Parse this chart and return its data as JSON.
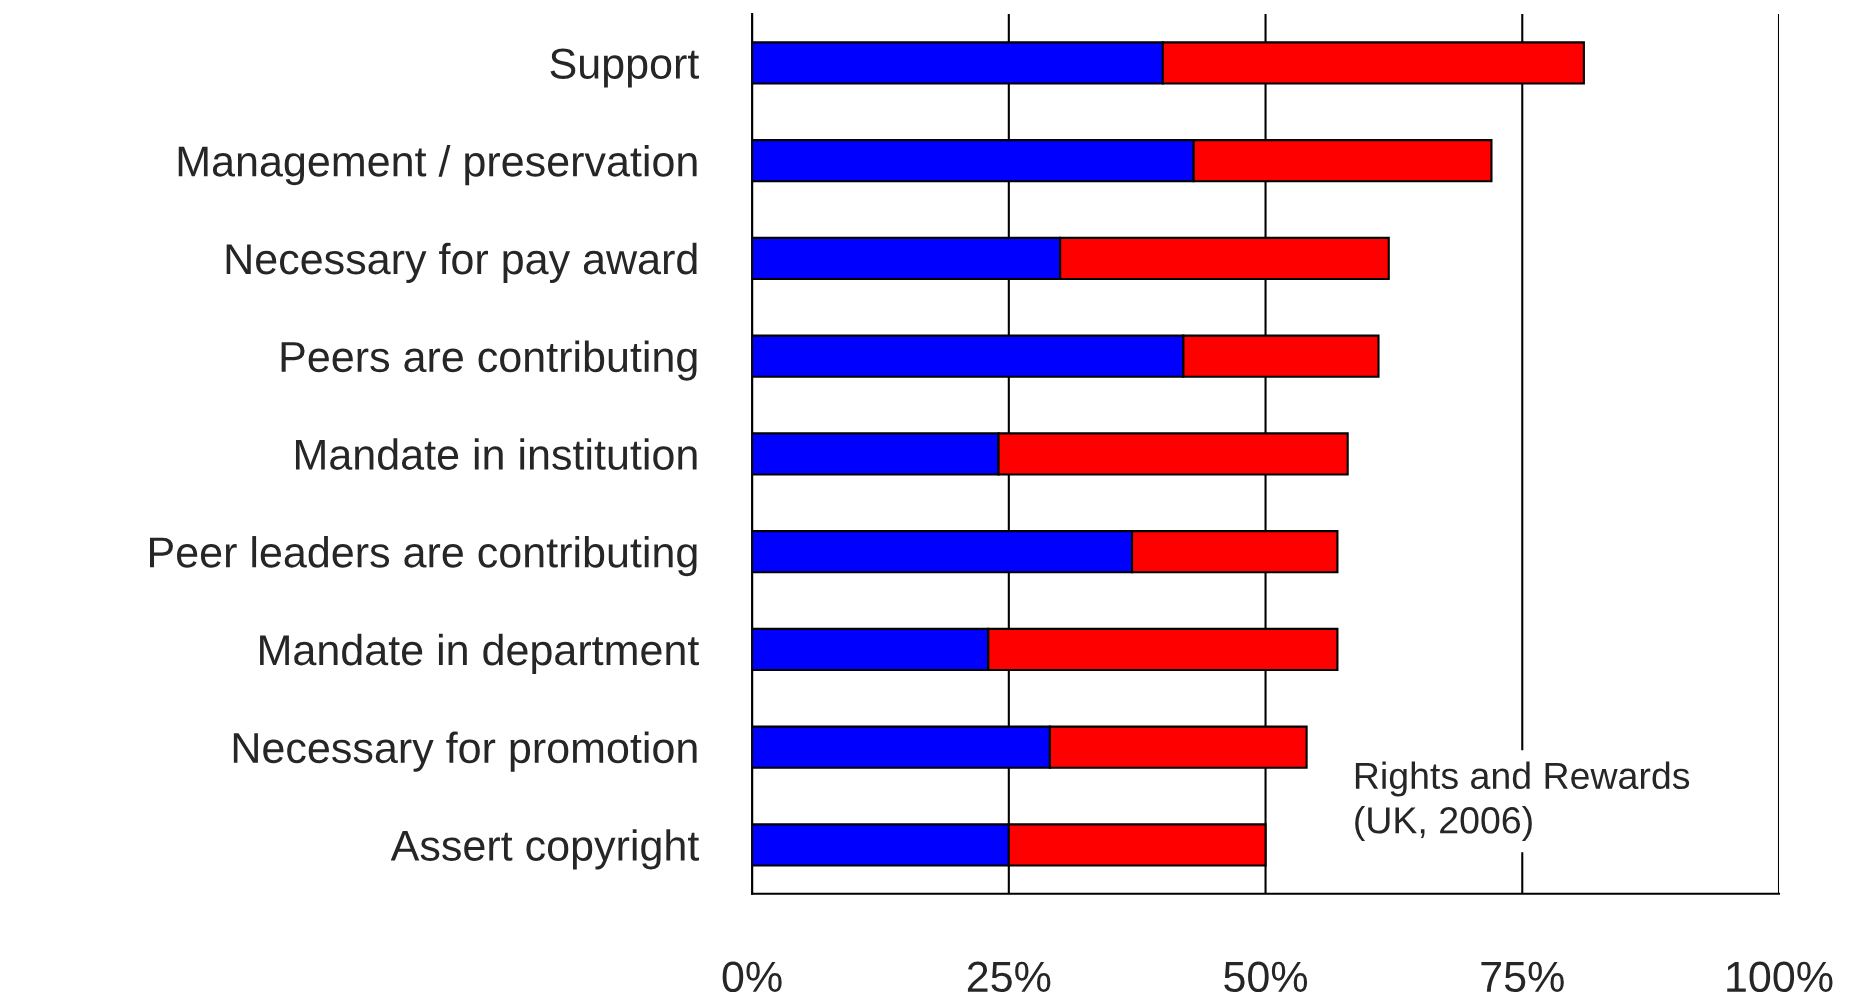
{
  "chart_data": {
    "type": "bar",
    "orientation": "horizontal",
    "stacked": true,
    "categories": [
      "Support",
      "Management / preservation",
      "Necessary for pay award",
      "Peers are contributing",
      "Mandate in institution",
      "Peer leaders are contributing",
      "Mandate in department",
      "Necessary for promotion",
      "Assert copyright"
    ],
    "series": [
      {
        "color": "#0000ff",
        "values": [
          40,
          43,
          30,
          42,
          24,
          37,
          23,
          29,
          25
        ]
      },
      {
        "color": "#ff0000",
        "values": [
          41,
          29,
          32,
          19,
          34,
          20,
          34,
          25,
          25
        ]
      }
    ],
    "xlim": [
      0,
      100
    ],
    "xticks": [
      {
        "value": 0,
        "label": "0%"
      },
      {
        "value": 25,
        "label": "25%"
      },
      {
        "value": 50,
        "label": "50%"
      },
      {
        "value": 75,
        "label": "75%"
      },
      {
        "value": 100,
        "label": "100%"
      }
    ],
    "grid": "x",
    "annotations": [
      "Rights and Rewards\n(UK, 2006)"
    ]
  }
}
